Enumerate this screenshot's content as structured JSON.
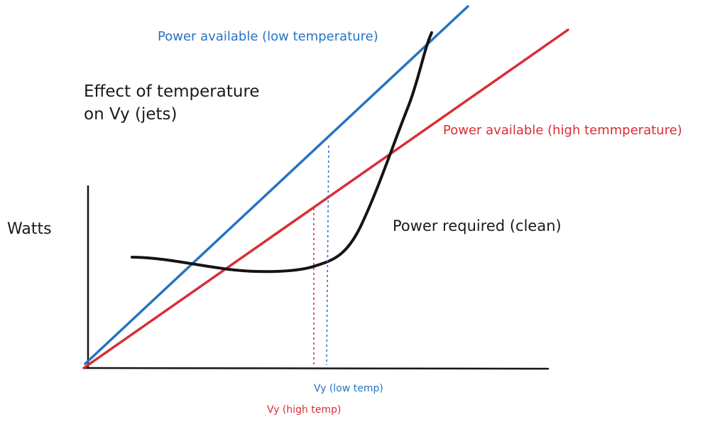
{
  "title_line1": "Effect of temperature",
  "title_line2": "on Vy (jets)",
  "y_axis_label": "Watts",
  "curves": {
    "power_available_low": "Power available (low temperature)",
    "power_available_high": "Power available (high temmperature)",
    "power_required": "Power required (clean)"
  },
  "markers": {
    "vy_low": "Vy (low temp)",
    "vy_high": "Vy (high temp)"
  },
  "colors": {
    "low": "#2773c4",
    "high": "#d92e34",
    "required": "#141414",
    "axis": "#141414"
  }
}
